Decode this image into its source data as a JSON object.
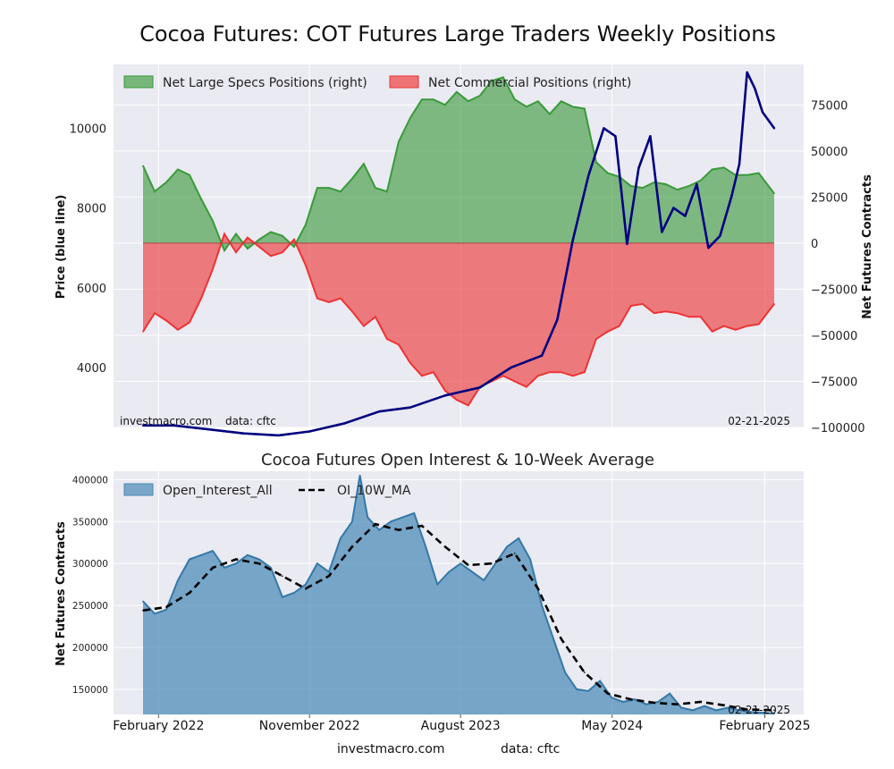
{
  "title": "Cocoa Futures: COT Futures Large Traders Weekly Positions",
  "top_panel": {
    "left_axis_label": "Price (blue line)",
    "right_axis_label": "Net Futures Contracts",
    "legend": [
      {
        "label": "Net Large Specs Positions (right)",
        "color": "#3a9a3a"
      },
      {
        "label": "Net Commercial Positions (right)",
        "color": "#ee3333"
      }
    ],
    "source_left": "investmacro.com",
    "source_right": "data: cftc",
    "date_stamp": "02-21-2025"
  },
  "bottom_panel": {
    "title": "Cocoa Futures Open Interest & 10-Week Average",
    "y_axis_label": "Net Futures Contracts",
    "legend": [
      {
        "label": "Open_Interest_All",
        "color": "#4a8ab5"
      },
      {
        "label": "OI_10W_MA",
        "color": "#000000"
      }
    ],
    "date_stamp": "02-21-2025"
  },
  "x_tick_labels": [
    "February 2022",
    "November 2022",
    "August 2023",
    "May 2024",
    "February 2025"
  ],
  "footer": {
    "source": "investmacro.com",
    "data": "data: cftc"
  },
  "chart_data": [
    {
      "type": "line",
      "title": "Cocoa Futures: COT Futures Large Traders Weekly Positions",
      "x_range": [
        "2022-01-04",
        "2025-02-18"
      ],
      "y_left": {
        "label": "Price (blue line)",
        "ylim": [
          2500,
          11600
        ],
        "ticks": [
          4000,
          6000,
          8000,
          10000
        ]
      },
      "y_right": {
        "label": "Net Futures Contracts",
        "ylim": [
          -100000,
          97000
        ],
        "ticks": [
          -100000,
          -75000,
          -50000,
          -25000,
          0,
          25000,
          50000,
          75000
        ]
      },
      "grid": true,
      "legend_position": "top-left",
      "series": [
        {
          "name": "Net Large Specs Positions (right)",
          "axis": "right",
          "kind": "area",
          "color": "#3a9a3a",
          "x": [
            "2022-01-04",
            "2022-01-25",
            "2022-02-15",
            "2022-03-08",
            "2022-03-29",
            "2022-04-19",
            "2022-05-10",
            "2022-05-31",
            "2022-06-21",
            "2022-07-12",
            "2022-08-02",
            "2022-08-23",
            "2022-09-13",
            "2022-10-04",
            "2022-10-25",
            "2022-11-15",
            "2022-12-06",
            "2022-12-27",
            "2023-01-17",
            "2023-02-07",
            "2023-02-28",
            "2023-03-21",
            "2023-04-11",
            "2023-05-02",
            "2023-05-23",
            "2023-06-13",
            "2023-07-04",
            "2023-07-25",
            "2023-08-15",
            "2023-09-05",
            "2023-09-26",
            "2023-10-17",
            "2023-11-07",
            "2023-11-28",
            "2023-12-19",
            "2024-01-09",
            "2024-01-30",
            "2024-02-20",
            "2024-03-12",
            "2024-04-02",
            "2024-04-23",
            "2024-05-14",
            "2024-06-04",
            "2024-06-25",
            "2024-07-16",
            "2024-08-06",
            "2024-08-27",
            "2024-09-17",
            "2024-10-08",
            "2024-10-29",
            "2024-11-19",
            "2024-12-10",
            "2024-12-31",
            "2025-01-21",
            "2025-02-18"
          ],
          "values": [
            42000,
            28000,
            33000,
            40000,
            37000,
            24000,
            12000,
            -4000,
            5000,
            -3000,
            2000,
            6000,
            4000,
            -2000,
            10000,
            30000,
            30000,
            28000,
            35000,
            43000,
            30000,
            28000,
            55000,
            68000,
            78000,
            78000,
            75000,
            82000,
            77000,
            80000,
            88000,
            90000,
            78000,
            74000,
            77000,
            70000,
            77000,
            74000,
            73000,
            44000,
            38000,
            36000,
            31000,
            30000,
            33000,
            32000,
            29000,
            31000,
            34000,
            40000,
            41000,
            37000,
            37000,
            38000,
            27000
          ]
        },
        {
          "name": "Net Commercial Positions (right)",
          "axis": "right",
          "kind": "area",
          "color": "#ee3333",
          "x": [
            "2022-01-04",
            "2022-01-25",
            "2022-02-15",
            "2022-03-08",
            "2022-03-29",
            "2022-04-19",
            "2022-05-10",
            "2022-05-31",
            "2022-06-21",
            "2022-07-12",
            "2022-08-02",
            "2022-08-23",
            "2022-09-13",
            "2022-10-04",
            "2022-10-25",
            "2022-11-15",
            "2022-12-06",
            "2022-12-27",
            "2023-01-17",
            "2023-02-07",
            "2023-02-28",
            "2023-03-21",
            "2023-04-11",
            "2023-05-02",
            "2023-05-23",
            "2023-06-13",
            "2023-07-04",
            "2023-07-25",
            "2023-08-15",
            "2023-09-05",
            "2023-09-26",
            "2023-10-17",
            "2023-11-07",
            "2023-11-28",
            "2023-12-19",
            "2024-01-09",
            "2024-01-30",
            "2024-02-20",
            "2024-03-12",
            "2024-04-02",
            "2024-04-23",
            "2024-05-14",
            "2024-06-04",
            "2024-06-25",
            "2024-07-16",
            "2024-08-06",
            "2024-08-27",
            "2024-09-17",
            "2024-10-08",
            "2024-10-29",
            "2024-11-19",
            "2024-12-10",
            "2024-12-31",
            "2025-01-21",
            "2025-02-18"
          ],
          "values": [
            -48000,
            -38000,
            -42000,
            -47000,
            -43000,
            -30000,
            -14000,
            5000,
            -5000,
            3000,
            -2000,
            -7000,
            -5000,
            2000,
            -12000,
            -30000,
            -32000,
            -30000,
            -37000,
            -45000,
            -40000,
            -52000,
            -55000,
            -65000,
            -72000,
            -70000,
            -80000,
            -85000,
            -88000,
            -78000,
            -75000,
            -72000,
            -75000,
            -78000,
            -72000,
            -70000,
            -70000,
            -72000,
            -70000,
            -52000,
            -48000,
            -45000,
            -34000,
            -33000,
            -38000,
            -37000,
            -38000,
            -40000,
            -40000,
            -48000,
            -45000,
            -47000,
            -45000,
            -44000,
            -33000
          ]
        },
        {
          "name": "Price",
          "axis": "left",
          "kind": "line",
          "color": "#000080",
          "x": [
            "2022-01-04",
            "2022-03-01",
            "2022-05-03",
            "2022-07-05",
            "2022-09-06",
            "2022-11-01",
            "2023-01-03",
            "2023-03-07",
            "2023-05-02",
            "2023-07-04",
            "2023-09-05",
            "2023-10-31",
            "2023-12-26",
            "2024-01-23",
            "2024-02-20",
            "2024-03-19",
            "2024-04-16",
            "2024-05-07",
            "2024-05-28",
            "2024-06-18",
            "2024-07-09",
            "2024-07-30",
            "2024-08-20",
            "2024-09-10",
            "2024-10-01",
            "2024-10-22",
            "2024-11-12",
            "2024-12-03",
            "2024-12-17",
            "2024-12-31",
            "2025-01-14",
            "2025-01-28",
            "2025-02-18"
          ],
          "values": [
            2550,
            2550,
            2450,
            2350,
            2300,
            2400,
            2600,
            2900,
            3000,
            3300,
            3500,
            4000,
            4300,
            5200,
            7200,
            8800,
            10000,
            9800,
            7100,
            9000,
            9800,
            7400,
            8000,
            7800,
            8600,
            7000,
            7300,
            8300,
            9100,
            11400,
            11000,
            10400,
            10000
          ]
        }
      ]
    },
    {
      "type": "area",
      "title": "Cocoa Futures Open Interest & 10-Week Average",
      "x_range": [
        "2022-01-04",
        "2025-02-18"
      ],
      "ylabel": "Net Futures Contracts",
      "ylim": [
        120000,
        410000
      ],
      "y_ticks": [
        150000,
        200000,
        250000,
        300000,
        350000,
        400000
      ],
      "grid": true,
      "legend_position": "top-left",
      "series": [
        {
          "name": "Open_Interest_All",
          "kind": "area",
          "color": "#4a8ab5",
          "x": [
            "2022-01-04",
            "2022-01-25",
            "2022-02-15",
            "2022-03-08",
            "2022-03-29",
            "2022-04-19",
            "2022-05-10",
            "2022-05-31",
            "2022-06-21",
            "2022-07-12",
            "2022-08-02",
            "2022-08-23",
            "2022-09-13",
            "2022-10-04",
            "2022-10-25",
            "2022-11-15",
            "2022-12-06",
            "2022-12-27",
            "2023-01-17",
            "2023-01-31",
            "2023-02-14",
            "2023-03-07",
            "2023-03-28",
            "2023-04-18",
            "2023-05-09",
            "2023-05-30",
            "2023-06-20",
            "2023-07-11",
            "2023-08-01",
            "2023-08-22",
            "2023-09-12",
            "2023-10-03",
            "2023-10-24",
            "2023-11-14",
            "2023-12-05",
            "2023-12-26",
            "2024-01-16",
            "2024-02-06",
            "2024-02-27",
            "2024-03-19",
            "2024-04-09",
            "2024-04-30",
            "2024-05-21",
            "2024-06-11",
            "2024-07-02",
            "2024-07-23",
            "2024-08-13",
            "2024-09-03",
            "2024-09-24",
            "2024-10-15",
            "2024-11-05",
            "2024-11-26",
            "2024-12-17",
            "2025-01-07",
            "2025-01-28",
            "2025-02-18"
          ],
          "values": [
            255000,
            240000,
            245000,
            280000,
            305000,
            310000,
            315000,
            295000,
            300000,
            310000,
            305000,
            295000,
            260000,
            265000,
            275000,
            300000,
            290000,
            330000,
            350000,
            405000,
            355000,
            340000,
            350000,
            355000,
            360000,
            320000,
            275000,
            290000,
            300000,
            290000,
            280000,
            300000,
            320000,
            330000,
            305000,
            250000,
            210000,
            170000,
            150000,
            148000,
            160000,
            140000,
            135000,
            138000,
            132000,
            135000,
            145000,
            128000,
            125000,
            130000,
            125000,
            128000,
            125000,
            123000,
            122000,
            121000
          ]
        },
        {
          "name": "OI_10W_MA",
          "kind": "line",
          "style": "dashed",
          "color": "#000000",
          "x": [
            "2022-01-04",
            "2022-02-15",
            "2022-03-29",
            "2022-05-10",
            "2022-06-21",
            "2022-08-02",
            "2022-09-13",
            "2022-10-25",
            "2022-12-06",
            "2023-01-17",
            "2023-02-28",
            "2023-04-11",
            "2023-05-23",
            "2023-07-04",
            "2023-08-15",
            "2023-09-26",
            "2023-11-07",
            "2023-12-19",
            "2024-01-30",
            "2024-03-12",
            "2024-04-23",
            "2024-06-04",
            "2024-07-16",
            "2024-08-27",
            "2024-10-08",
            "2024-11-19",
            "2024-12-31",
            "2025-02-18"
          ],
          "values": [
            244000,
            248000,
            265000,
            295000,
            305000,
            300000,
            285000,
            270000,
            285000,
            320000,
            347000,
            340000,
            345000,
            320000,
            298000,
            300000,
            312000,
            270000,
            210000,
            170000,
            145000,
            138000,
            134000,
            132000,
            135000,
            131000,
            126000,
            125000
          ]
        }
      ]
    }
  ]
}
